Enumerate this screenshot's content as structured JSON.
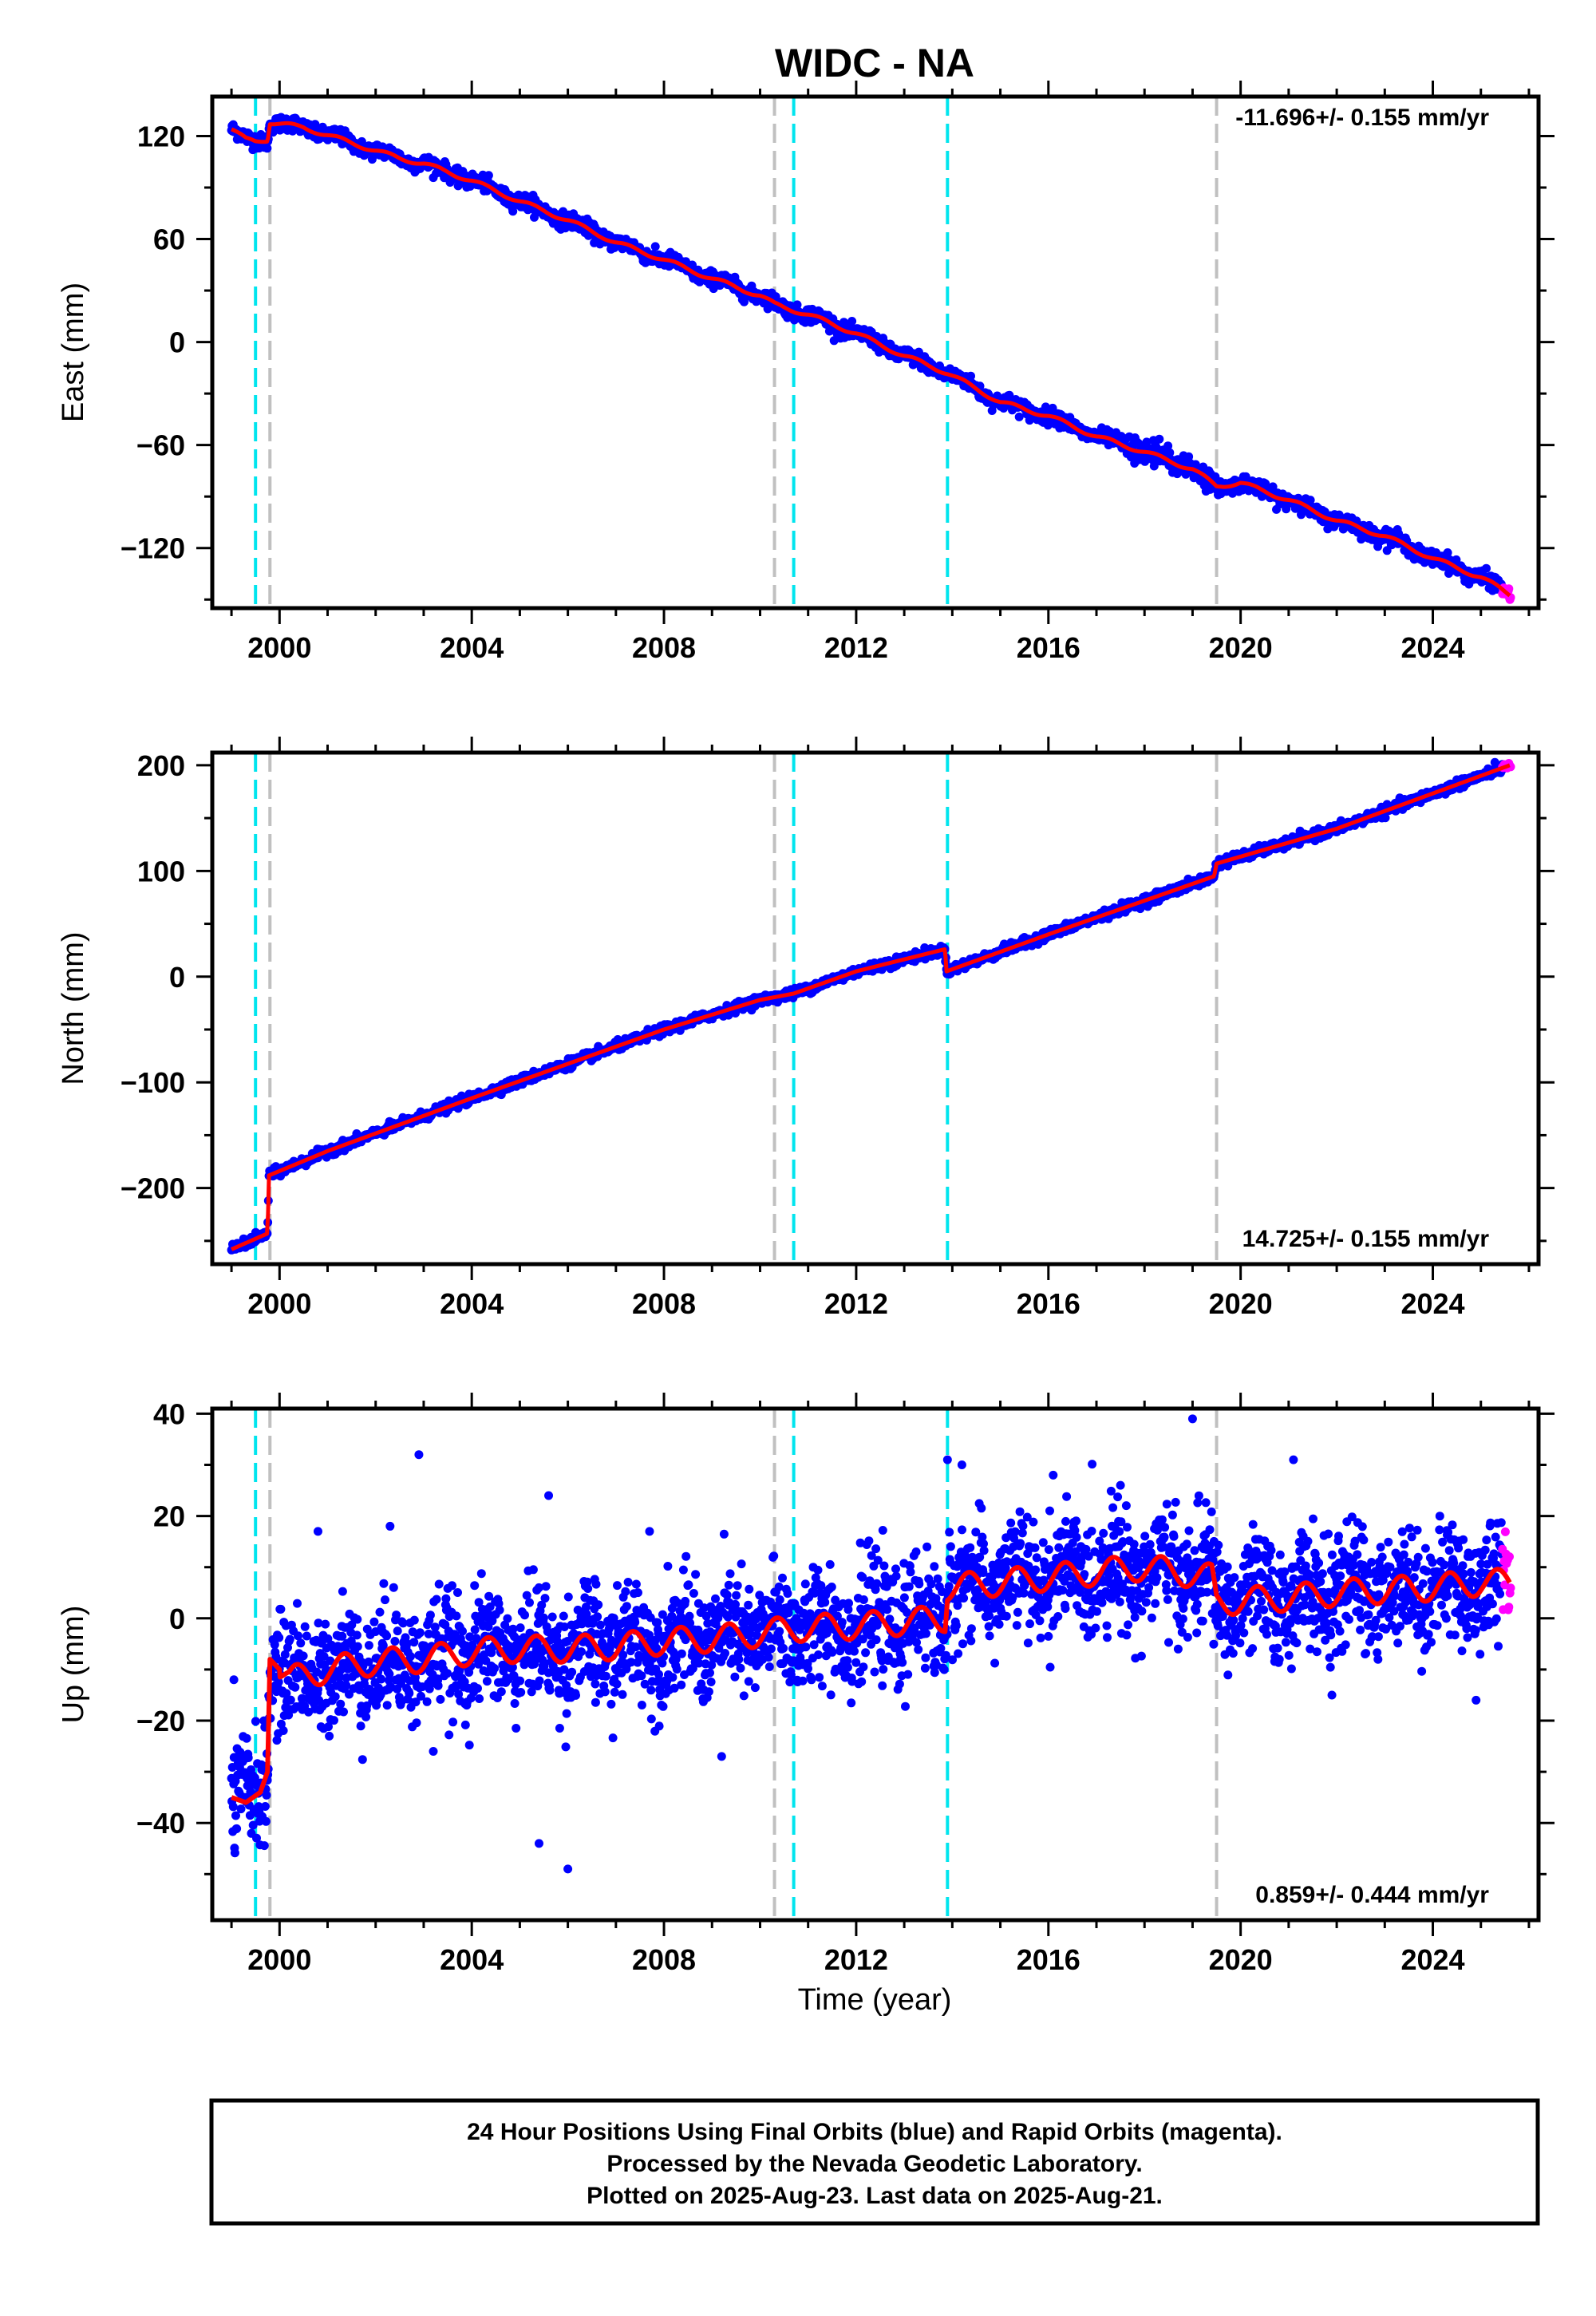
{
  "title": "WIDC - NA",
  "xlabel": "Time (year)",
  "footer": {
    "line1": "24 Hour Positions Using Final Orbits (blue) and Rapid Orbits (magenta).",
    "line2": "Processed by the Nevada Geodetic Laboratory.",
    "line3": "Plotted on 2025-Aug-23. Last data on 2025-Aug-21."
  },
  "colors": {
    "final_orbits": "#0000ff",
    "rapid_orbits": "#ff00ff",
    "model": "#ff0000",
    "offset_cyan": "#00e5ee",
    "offset_gray": "#c0c0c0"
  },
  "chart_data": [
    {
      "type": "scatter",
      "ylabel": "East (mm)",
      "rate": "-11.696+/- 0.155 mm/yr",
      "rate_position": "top-right",
      "xlim": [
        1998.6,
        2026.2
      ],
      "ylim": [
        -155,
        143
      ],
      "xticks": [
        2000,
        2004,
        2008,
        2012,
        2016,
        2020,
        2024
      ],
      "yticks": [
        120,
        60,
        0,
        -60,
        -120
      ],
      "vlines_cyan": [
        1999.5,
        2010.7,
        2013.9
      ],
      "vlines_gray": [
        1999.8,
        2010.3,
        2019.5
      ],
      "series": [
        {
          "color": "#ff0000",
          "x": [
            1999.0,
            1999.3,
            1999.5,
            1999.75,
            1999.8,
            2000.5,
            2001.5,
            2002.5,
            2003.0,
            2004.0,
            2005.0,
            2006.0,
            2007.0,
            2008.0,
            2009.0,
            2010.0,
            2010.3,
            2011.0,
            2012.0,
            2013.0,
            2013.9,
            2015.0,
            2016.0,
            2017.0,
            2018.0,
            2019.0,
            2019.5,
            2020.0,
            2021.0,
            2022.0,
            2023.0,
            2024.0,
            2025.0,
            2025.6
          ],
          "y": [
            124,
            118,
            117,
            118,
            128,
            125,
            116,
            107,
            104,
            94,
            82,
            71,
            58,
            48,
            37,
            27,
            22,
            16,
            5,
            -8,
            -18,
            -35,
            -43,
            -55,
            -64,
            -74,
            -84,
            -82,
            -92,
            -104,
            -113,
            -126,
            -137,
            -147
          ]
        }
      ]
    },
    {
      "type": "scatter",
      "ylabel": "North (mm)",
      "rate": "14.725+/- 0.155 mm/yr",
      "rate_position": "bottom-right",
      "xlim": [
        1998.6,
        2026.2
      ],
      "ylim": [
        -272,
        212
      ],
      "xticks": [
        2000,
        2004,
        2008,
        2012,
        2016,
        2020,
        2024
      ],
      "yticks": [
        200,
        100,
        0,
        -100,
        -200
      ],
      "vlines_cyan": [
        1999.5,
        2010.7,
        2013.9
      ],
      "vlines_gray": [
        1999.8,
        2010.3,
        2019.5
      ],
      "series": [
        {
          "color": "#ff0000",
          "x": [
            1999.0,
            1999.75,
            1999.78,
            2001.0,
            2004.0,
            2008.0,
            2010.0,
            2010.7,
            2012.0,
            2013.85,
            2013.88,
            2016.0,
            2019.45,
            2019.5,
            2022.0,
            2025.6
          ],
          "y": [
            -258,
            -243,
            -188,
            -165,
            -115,
            -50,
            -22,
            -16,
            5,
            26,
            5,
            40,
            95,
            107,
            140,
            200
          ]
        }
      ]
    },
    {
      "type": "scatter",
      "ylabel": "Up (mm)",
      "rate": "0.859+/- 0.444 mm/yr",
      "rate_position": "bottom-right",
      "xlim": [
        1998.6,
        2026.2
      ],
      "ylim": [
        -59,
        41
      ],
      "xticks": [
        2000,
        2004,
        2008,
        2012,
        2016,
        2020,
        2024
      ],
      "yticks": [
        40,
        20,
        0,
        -20,
        -40
      ],
      "vlines_cyan": [
        1999.5,
        2010.7,
        2013.9
      ],
      "vlines_gray": [
        1999.8,
        2010.3,
        2019.5
      ],
      "series": [
        {
          "color": "#ff0000",
          "x": [
            1999.0,
            1999.3,
            1999.6,
            1999.75,
            1999.8,
            2000.2,
            2001.0,
            2002.0,
            2003.0,
            2004.0,
            2005.0,
            2006.0,
            2007.0,
            2008.0,
            2009.0,
            2010.0,
            2010.7,
            2012.0,
            2013.85,
            2013.9,
            2015.0,
            2016.0,
            2017.0,
            2018.0,
            2019.4,
            2019.5,
            2020.0,
            2021.0,
            2022.0,
            2023.0,
            2024.0,
            2025.0,
            2025.6
          ],
          "y": [
            -35,
            -36,
            -34,
            -30,
            -8,
            -12,
            -10,
            -8.5,
            -8,
            -6.5,
            -6,
            -6,
            -5.5,
            -4.5,
            -4,
            -3,
            -2,
            -1.5,
            0,
            6,
            7,
            8,
            9,
            10,
            8,
            3,
            3.5,
            4,
            5,
            5.5,
            6,
            7,
            7
          ]
        }
      ]
    }
  ]
}
